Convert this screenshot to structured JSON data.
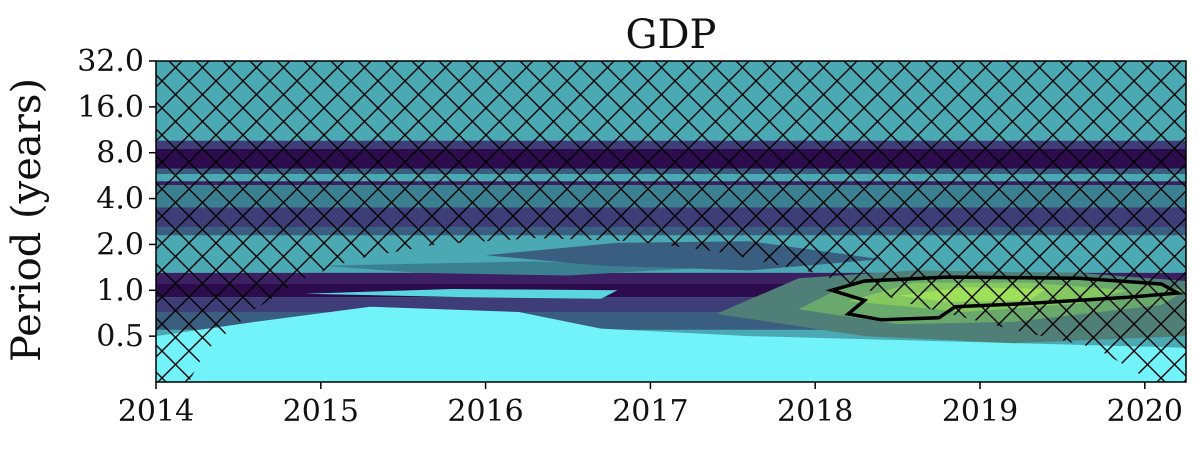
{
  "chart_data": {
    "type": "heatmap",
    "title": "GDP",
    "xlabel": "",
    "ylabel": "Period (years)",
    "x_ticks": [
      "2014",
      "2015",
      "2016",
      "2017",
      "2018",
      "2019",
      "2020"
    ],
    "y_ticks": [
      "32.0",
      "16.0",
      "8.0",
      "4.0",
      "2.0",
      "1.0",
      "0.5"
    ],
    "xlim": [
      2014,
      2020.25
    ],
    "period_range_years": [
      0.25,
      32
    ],
    "y_scale": "log2",
    "grid": false,
    "legend": "none",
    "colormap": [
      "#71f3f9",
      "#5ad6df",
      "#4aa9b3",
      "#3b8090",
      "#3a5e80",
      "#3f3d77",
      "#3d1f63",
      "#2c0c4c",
      "#4f7f76",
      "#6aa96c",
      "#84c85f",
      "#9fe05a"
    ],
    "significance_contour": {
      "color": "#000000",
      "x_range": [
        2018.1,
        2020.2
      ],
      "period_range": [
        0.6,
        1.25
      ]
    },
    "cone_of_influence": {
      "style": "hatched",
      "hatch_color": "#000000"
    }
  }
}
